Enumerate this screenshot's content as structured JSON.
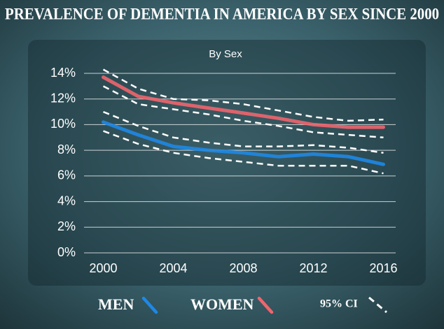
{
  "chart_data": {
    "type": "line",
    "title": "PREVALENCE OF DEMENTIA IN AMERICA BY SEX SINCE 2000",
    "subtitle": "By Sex",
    "x": [
      2000,
      2002,
      2004,
      2006,
      2008,
      2010,
      2012,
      2014,
      2016
    ],
    "xlim": [
      1998.9,
      2016.7
    ],
    "xticks": [
      2000,
      2004,
      2008,
      2012,
      2016
    ],
    "ylim": [
      0,
      14
    ],
    "yticks": [
      {
        "value": 0,
        "label": "0%"
      },
      {
        "value": 2,
        "label": "2%"
      },
      {
        "value": 4,
        "label": "4%"
      },
      {
        "value": 6,
        "label": "6%"
      },
      {
        "value": 8,
        "label": "8%"
      },
      {
        "value": 10,
        "label": "10%"
      },
      {
        "value": 12,
        "label": "12%"
      },
      {
        "value": 14,
        "label": "14%"
      }
    ],
    "grid": true,
    "ci_name": "95% CI",
    "ci_color": "#ffffff",
    "series": [
      {
        "name": "MEN",
        "color": "#1e88e5",
        "values": [
          10.2,
          9.2,
          8.3,
          8.0,
          7.8,
          7.5,
          7.7,
          7.5,
          6.9
        ],
        "ci_upper": [
          11.0,
          9.9,
          9.0,
          8.6,
          8.3,
          8.3,
          8.4,
          8.2,
          7.8
        ],
        "ci_lower": [
          9.5,
          8.5,
          7.8,
          7.4,
          7.1,
          6.8,
          6.8,
          6.8,
          6.2
        ]
      },
      {
        "name": "WOMEN",
        "color": "#f0656e",
        "values": [
          13.7,
          12.2,
          11.7,
          11.3,
          10.9,
          10.5,
          10.0,
          9.8,
          9.8
        ],
        "ci_upper": [
          14.3,
          12.8,
          12.0,
          11.9,
          11.6,
          11.1,
          10.6,
          10.3,
          10.4
        ],
        "ci_lower": [
          13.0,
          11.6,
          11.2,
          10.8,
          10.3,
          9.9,
          9.4,
          9.2,
          9.0
        ]
      }
    ]
  }
}
